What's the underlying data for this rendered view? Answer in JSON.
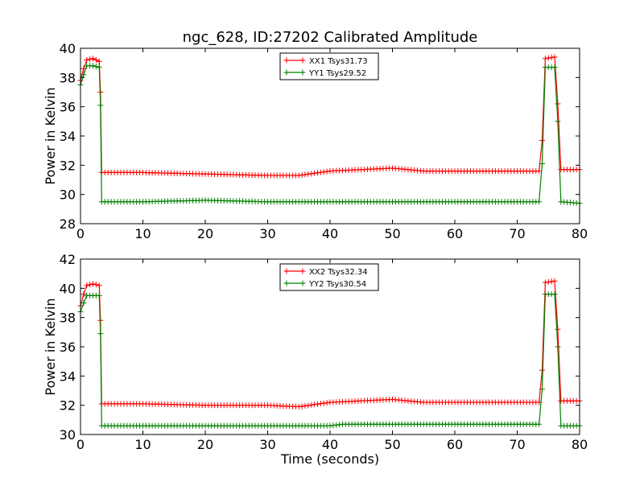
{
  "figure": {
    "title": "ngc_628, ID:27202 Calibrated Amplitude"
  },
  "chart_data": [
    {
      "type": "line",
      "title": "ngc_628, ID:27202 Calibrated Amplitude",
      "xlabel": "",
      "ylabel": "Power in Kelvin",
      "xlim": [
        0,
        80
      ],
      "ylim": [
        28,
        40
      ],
      "xticks": [
        0,
        10,
        20,
        30,
        40,
        50,
        60,
        70,
        80
      ],
      "yticks": [
        28,
        30,
        32,
        34,
        36,
        38,
        40
      ],
      "grid": false,
      "legend_position": "top-center",
      "series": [
        {
          "name": "XX1 Tsys31.73",
          "color": "#ff0000",
          "marker": "plus",
          "points": [
            [
              0,
              37.8
            ],
            [
              0.5,
              38.6
            ],
            [
              1,
              39.2
            ],
            [
              2,
              39.3
            ],
            [
              3,
              39.1
            ],
            [
              3.2,
              37.0
            ],
            [
              3.4,
              31.5
            ],
            [
              10,
              31.5
            ],
            [
              20,
              31.4
            ],
            [
              30,
              31.3
            ],
            [
              35,
              31.3
            ],
            [
              40,
              31.6
            ],
            [
              45,
              31.7
            ],
            [
              50,
              31.8
            ],
            [
              55,
              31.6
            ],
            [
              60,
              31.6
            ],
            [
              65,
              31.6
            ],
            [
              70,
              31.6
            ],
            [
              73.5,
              31.6
            ],
            [
              74,
              33.7
            ],
            [
              74.5,
              39.3
            ],
            [
              76,
              39.4
            ],
            [
              76.5,
              36.2
            ],
            [
              77,
              31.7
            ],
            [
              80,
              31.7
            ]
          ]
        },
        {
          "name": "YY1 Tsys29.52",
          "color": "#008000",
          "marker": "plus",
          "points": [
            [
              0,
              37.5
            ],
            [
              0.5,
              38.2
            ],
            [
              1,
              38.8
            ],
            [
              2,
              38.8
            ],
            [
              3,
              38.7
            ],
            [
              3.2,
              36.1
            ],
            [
              3.4,
              29.5
            ],
            [
              10,
              29.5
            ],
            [
              20,
              29.6
            ],
            [
              30,
              29.5
            ],
            [
              40,
              29.5
            ],
            [
              50,
              29.5
            ],
            [
              60,
              29.5
            ],
            [
              70,
              29.5
            ],
            [
              73.5,
              29.5
            ],
            [
              74,
              32.1
            ],
            [
              74.5,
              38.7
            ],
            [
              76,
              38.7
            ],
            [
              76.5,
              35.0
            ],
            [
              77,
              29.5
            ],
            [
              80,
              29.4
            ]
          ]
        }
      ]
    },
    {
      "type": "line",
      "title": "",
      "xlabel": "Time (seconds)",
      "ylabel": "Power in Kelvin",
      "xlim": [
        0,
        80
      ],
      "ylim": [
        30,
        42
      ],
      "xticks": [
        0,
        10,
        20,
        30,
        40,
        50,
        60,
        70,
        80
      ],
      "yticks": [
        30,
        32,
        34,
        36,
        38,
        40,
        42
      ],
      "grid": false,
      "legend_position": "top-center",
      "series": [
        {
          "name": "XX2 Tsys32.34",
          "color": "#ff0000",
          "marker": "plus",
          "points": [
            [
              0,
              38.8
            ],
            [
              0.5,
              39.6
            ],
            [
              1,
              40.2
            ],
            [
              2,
              40.3
            ],
            [
              3,
              40.2
            ],
            [
              3.2,
              37.8
            ],
            [
              3.4,
              32.1
            ],
            [
              10,
              32.1
            ],
            [
              20,
              32.0
            ],
            [
              30,
              32.0
            ],
            [
              35,
              31.9
            ],
            [
              40,
              32.2
            ],
            [
              45,
              32.3
            ],
            [
              50,
              32.4
            ],
            [
              55,
              32.2
            ],
            [
              60,
              32.2
            ],
            [
              65,
              32.2
            ],
            [
              70,
              32.2
            ],
            [
              73.5,
              32.2
            ],
            [
              74,
              34.4
            ],
            [
              74.5,
              40.4
            ],
            [
              76,
              40.5
            ],
            [
              76.5,
              37.2
            ],
            [
              77,
              32.3
            ],
            [
              80,
              32.3
            ]
          ]
        },
        {
          "name": "YY2 Tsys30.54",
          "color": "#008000",
          "marker": "plus",
          "points": [
            [
              0,
              38.4
            ],
            [
              0.5,
              39.0
            ],
            [
              1,
              39.5
            ],
            [
              2,
              39.5
            ],
            [
              3,
              39.5
            ],
            [
              3.2,
              36.9
            ],
            [
              3.4,
              30.6
            ],
            [
              10,
              30.6
            ],
            [
              20,
              30.6
            ],
            [
              30,
              30.6
            ],
            [
              40,
              30.6
            ],
            [
              42,
              30.7
            ],
            [
              50,
              30.7
            ],
            [
              60,
              30.7
            ],
            [
              70,
              30.7
            ],
            [
              73.5,
              30.7
            ],
            [
              74,
              33.1
            ],
            [
              74.5,
              39.6
            ],
            [
              76,
              39.6
            ],
            [
              76.5,
              36.0
            ],
            [
              77,
              30.6
            ],
            [
              80,
              30.6
            ]
          ]
        }
      ]
    }
  ]
}
